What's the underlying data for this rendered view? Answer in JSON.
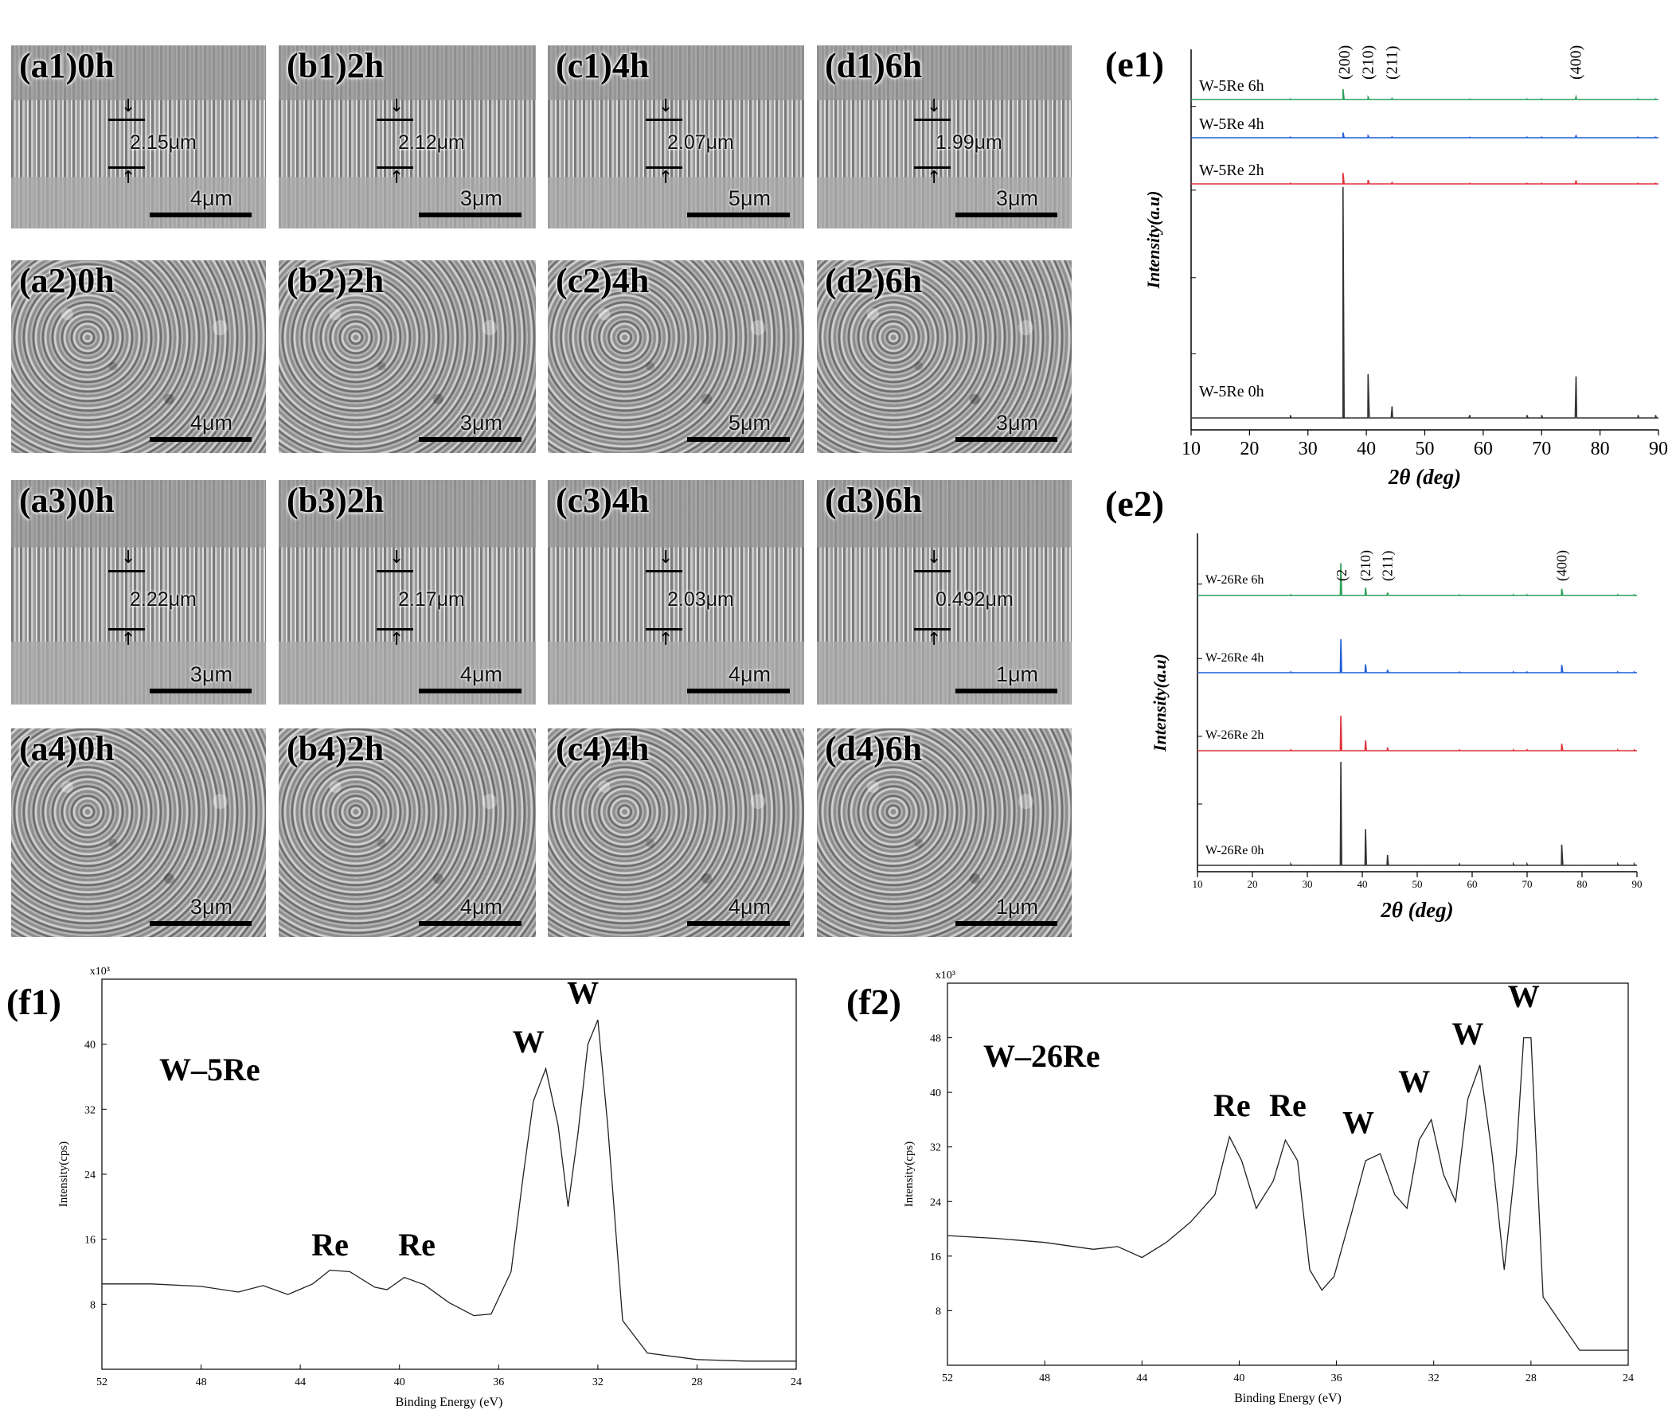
{
  "sem_panels": [
    {
      "label": "(a1)0h",
      "type": "cross",
      "thickness": "2.15μm",
      "scale": "4μm"
    },
    {
      "label": "(b1)2h",
      "type": "cross",
      "thickness": "2.12μm",
      "scale": "3μm"
    },
    {
      "label": "(c1)4h",
      "type": "cross",
      "thickness": "2.07μm",
      "scale": "5μm"
    },
    {
      "label": "(d1)6h",
      "type": "cross",
      "thickness": "1.99μm",
      "scale": "3μm"
    },
    {
      "label": "(a2)0h",
      "type": "surface",
      "scale": "4μm"
    },
    {
      "label": "(b2)2h",
      "type": "surface",
      "scale": "3μm"
    },
    {
      "label": "(c2)4h",
      "type": "surface",
      "scale": "5μm"
    },
    {
      "label": "(d2)6h",
      "type": "surface",
      "scale": "3μm"
    },
    {
      "label": "(a3)0h",
      "type": "cross",
      "thickness": "2.22μm",
      "scale": "3μm"
    },
    {
      "label": "(b3)2h",
      "type": "cross",
      "thickness": "2.17μm",
      "scale": "4μm"
    },
    {
      "label": "(c3)4h",
      "type": "cross",
      "thickness": "2.03μm",
      "scale": "4μm"
    },
    {
      "label": "(d3)6h",
      "type": "cross",
      "thickness": "0.492μm",
      "scale": "1μm"
    },
    {
      "label": "(a4)0h",
      "type": "surface",
      "scale": "3μm"
    },
    {
      "label": "(b4)2h",
      "type": "surface",
      "scale": "4μm"
    },
    {
      "label": "(c4)4h",
      "type": "surface",
      "scale": "4μm"
    },
    {
      "label": "(d4)6h",
      "type": "surface",
      "scale": "1μm"
    }
  ],
  "chart_data": [
    {
      "id": "e1",
      "panel_label": "(e1)",
      "type": "line",
      "xlabel": "2θ (deg)",
      "ylabel": "Intensity(a.u)",
      "xlim": [
        10,
        90
      ],
      "xticks": [
        10,
        20,
        30,
        40,
        50,
        60,
        70,
        80,
        90
      ],
      "peak_labels": [
        "(200)",
        "(210)",
        "(211)",
        "(400)"
      ],
      "peak_positions": [
        36,
        40.3,
        44.4,
        75.9
      ],
      "series": [
        {
          "name": "W-5Re 6h",
          "color": "#2ca05a",
          "peaks": [
            [
              36.0,
              0.26
            ],
            [
              40.3,
              0.06
            ],
            [
              44.4,
              0.03
            ],
            [
              75.9,
              0.07
            ]
          ]
        },
        {
          "name": "W-5Re 4h",
          "color": "#1f5fd6",
          "peaks": [
            [
              36.0,
              0.13
            ],
            [
              40.3,
              0.05
            ],
            [
              44.4,
              0.02
            ],
            [
              75.9,
              0.05
            ]
          ]
        },
        {
          "name": "W-5Re 2h",
          "color": "#e0313a",
          "peaks": [
            [
              36.0,
              0.25
            ],
            [
              40.3,
              0.09
            ],
            [
              44.4,
              0.03
            ],
            [
              75.9,
              0.08
            ]
          ]
        },
        {
          "name": "W-5Re 0h",
          "color": "#333333",
          "peaks": [
            [
              36.0,
              1.0
            ],
            [
              40.3,
              0.19
            ],
            [
              44.4,
              0.05
            ],
            [
              75.9,
              0.18
            ]
          ]
        }
      ]
    },
    {
      "id": "e2",
      "panel_label": "(e2)",
      "type": "line",
      "xlabel": "2θ (deg)",
      "ylabel": "Intensity(a.u)",
      "xlim": [
        10,
        90
      ],
      "xticks": [
        10,
        20,
        30,
        40,
        50,
        60,
        70,
        80,
        90
      ],
      "peak_labels": [
        "(2",
        "(210)",
        "(211)",
        "(400)"
      ],
      "peak_positions": [
        36.1,
        40.6,
        44.6,
        76.3
      ],
      "series": [
        {
          "name": "W-26Re 6h",
          "color": "#2ca05a",
          "peaks": [
            [
              36.1,
              0.58
            ],
            [
              40.6,
              0.14
            ],
            [
              44.6,
              0.05
            ],
            [
              76.3,
              0.12
            ]
          ]
        },
        {
          "name": "W-26Re 4h",
          "color": "#1f5fd6",
          "peaks": [
            [
              36.1,
              0.6
            ],
            [
              40.6,
              0.15
            ],
            [
              44.6,
              0.05
            ],
            [
              76.3,
              0.14
            ]
          ]
        },
        {
          "name": "W-26Re 2h",
          "color": "#e0313a",
          "peaks": [
            [
              36.1,
              0.55
            ],
            [
              40.6,
              0.16
            ],
            [
              44.6,
              0.05
            ],
            [
              76.3,
              0.11
            ]
          ]
        },
        {
          "name": "W-26Re 0h",
          "color": "#333333",
          "peaks": [
            [
              36.1,
              1.0
            ],
            [
              40.6,
              0.35
            ],
            [
              44.6,
              0.1
            ],
            [
              76.3,
              0.2
            ]
          ]
        }
      ]
    },
    {
      "id": "f1",
      "panel_label": "(f1)",
      "type": "line",
      "title": "W–5Re",
      "xlabel": "Binding Energy (eV)",
      "ylabel": "Intensity(cps)",
      "multiplier": "x10³",
      "xlim": [
        52,
        24
      ],
      "ylim": [
        0,
        48
      ],
      "xticks": [
        52,
        48,
        44,
        40,
        36,
        32,
        28,
        24
      ],
      "yticks": [
        8,
        16,
        24,
        32,
        40
      ],
      "x": [
        52,
        50,
        48,
        46.5,
        45.5,
        44.5,
        43.5,
        42.8,
        42,
        41,
        40.5,
        39.8,
        39,
        38,
        37,
        36.3,
        35.5,
        35,
        34.6,
        34.1,
        33.6,
        33.2,
        32.8,
        32.4,
        32,
        31.6,
        31,
        30,
        28,
        26,
        24
      ],
      "y": [
        10.5,
        10.5,
        10.2,
        9.5,
        10.3,
        9.2,
        10.5,
        12.2,
        12.0,
        10.1,
        9.8,
        11.3,
        10.4,
        8.2,
        6.6,
        6.8,
        12,
        24,
        33,
        37,
        30,
        20,
        29,
        40,
        43,
        30,
        6,
        2,
        1.2,
        1.0,
        1.0
      ],
      "annotations": [
        {
          "text": "Re",
          "x": 42.8,
          "y": 14
        },
        {
          "text": "Re",
          "x": 39.3,
          "y": 14
        },
        {
          "text": "W",
          "x": 34.8,
          "y": 39
        },
        {
          "text": "W",
          "x": 32.6,
          "y": 45
        }
      ]
    },
    {
      "id": "f2",
      "panel_label": "(f2)",
      "type": "line",
      "title": "W–26Re",
      "xlabel": "Binding Energy (eV)",
      "ylabel": "Intensity(cps)",
      "multiplier": "x10³",
      "xlim": [
        52,
        24
      ],
      "ylim": [
        0,
        56
      ],
      "xticks": [
        52,
        48,
        44,
        40,
        36,
        32,
        28,
        24
      ],
      "yticks": [
        8,
        16,
        24,
        32,
        40,
        48
      ],
      "x": [
        52,
        50,
        48,
        46,
        45,
        44,
        43,
        42,
        41,
        40.4,
        39.9,
        39.3,
        38.6,
        38.1,
        37.6,
        37.1,
        36.6,
        36.1,
        35.4,
        34.8,
        34.2,
        33.6,
        33.1,
        32.6,
        32.1,
        31.6,
        31.1,
        30.6,
        30.1,
        29.6,
        29.1,
        28.6,
        28.3,
        28.0,
        27.5,
        26,
        24
      ],
      "y": [
        19,
        18.6,
        18,
        17,
        17.4,
        15.8,
        18,
        21,
        25,
        33.5,
        30,
        23,
        27,
        33,
        30,
        14,
        11,
        13,
        22,
        30,
        31,
        25,
        23,
        33,
        36,
        28,
        24,
        39,
        44,
        31,
        14,
        31,
        48,
        48,
        10,
        2.2,
        2.2
      ],
      "annotations": [
        {
          "text": "Re",
          "x": 40.3,
          "y": 36.5
        },
        {
          "text": "Re",
          "x": 38.0,
          "y": 36.5
        },
        {
          "text": "W",
          "x": 35.1,
          "y": 34
        },
        {
          "text": "W",
          "x": 32.8,
          "y": 40
        },
        {
          "text": "W",
          "x": 30.6,
          "y": 47
        },
        {
          "text": "W",
          "x": 28.3,
          "y": 52.5
        }
      ]
    }
  ]
}
